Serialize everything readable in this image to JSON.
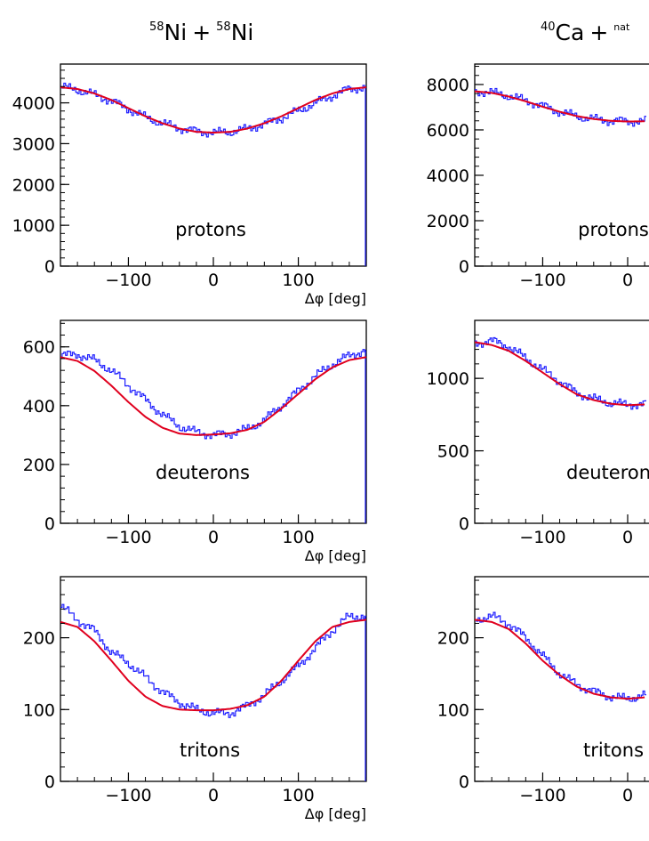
{
  "columns": [
    {
      "title_sup_a": "58",
      "title_el_a": "Ni",
      "title_plus": "+",
      "title_sup_b": "58",
      "title_el_b": "Ni"
    },
    {
      "title_sup_a": "40",
      "title_el_a": "Ca",
      "title_plus": "+",
      "title_sup_b": "nat",
      "title_el_b": ""
    }
  ],
  "colors": {
    "histogram": "#1f1fff",
    "fit": "#e0001e",
    "frame": "#000000"
  },
  "chart_data": [
    {
      "type": "line",
      "id": "ni-protons",
      "label": "protons",
      "xlabel": "Δφ [deg]",
      "ylabel": "",
      "xlim": [
        -180,
        180
      ],
      "ylim": [
        0,
        4950
      ],
      "xticks": [
        -100,
        0,
        100
      ],
      "yticks": [
        0,
        1000,
        2000,
        3000,
        4000
      ],
      "xtick_labels": [
        "−100",
        "0",
        "100"
      ],
      "ytick_labels": [
        "0",
        "1000",
        "2000",
        "3000",
        "4000"
      ],
      "series": [
        {
          "kind": "histogram",
          "x": [
            -180,
            -160,
            -140,
            -120,
            -100,
            -80,
            -60,
            -40,
            -20,
            0,
            20,
            40,
            60,
            80,
            100,
            120,
            140,
            160,
            180
          ],
          "values": [
            4400,
            4320,
            4200,
            4050,
            3850,
            3650,
            3500,
            3380,
            3300,
            3270,
            3290,
            3360,
            3480,
            3620,
            3800,
            3990,
            4170,
            4340,
            4380
          ]
        },
        {
          "kind": "fit",
          "x": [
            -180,
            -160,
            -140,
            -120,
            -100,
            -80,
            -60,
            -40,
            -20,
            0,
            20,
            40,
            60,
            80,
            100,
            120,
            140,
            160,
            180
          ],
          "values": [
            4380,
            4340,
            4230,
            4070,
            3870,
            3670,
            3500,
            3370,
            3290,
            3270,
            3290,
            3370,
            3500,
            3670,
            3870,
            4070,
            4230,
            4340,
            4380
          ]
        }
      ]
    },
    {
      "type": "line",
      "id": "ca-protons",
      "label": "protons",
      "xlabel": "",
      "ylabel": "",
      "xlim": [
        -180,
        180
      ],
      "ylim": [
        0,
        8900
      ],
      "xticks": [
        -100,
        0
      ],
      "yticks": [
        0,
        2000,
        4000,
        6000,
        8000
      ],
      "xtick_labels": [
        "−100",
        "0"
      ],
      "ytick_labels": [
        "0",
        "2000",
        "4000",
        "6000",
        "8000"
      ],
      "series": [
        {
          "kind": "histogram",
          "x": [
            -180,
            -160,
            -140,
            -120,
            -100,
            -80,
            -60,
            -40,
            -20,
            0,
            20
          ],
          "values": [
            7700,
            7650,
            7500,
            7300,
            7050,
            6800,
            6600,
            6480,
            6400,
            6380,
            6380
          ]
        },
        {
          "kind": "fit",
          "x": [
            -180,
            -160,
            -140,
            -120,
            -100,
            -80,
            -60,
            -40,
            -20,
            0,
            20
          ],
          "values": [
            7700,
            7630,
            7470,
            7260,
            7020,
            6800,
            6610,
            6480,
            6400,
            6370,
            6380
          ]
        }
      ]
    },
    {
      "type": "line",
      "id": "ni-deuterons",
      "label": "deuterons",
      "xlabel": "Δφ [deg]",
      "ylabel": "",
      "xlim": [
        -180,
        180
      ],
      "ylim": [
        0,
        690
      ],
      "xticks": [
        -100,
        0,
        100
      ],
      "yticks": [
        0,
        200,
        400,
        600
      ],
      "xtick_labels": [
        "−100",
        "0",
        "100"
      ],
      "ytick_labels": [
        "0",
        "200",
        "400",
        "600"
      ],
      "series": [
        {
          "kind": "histogram",
          "x": [
            -180,
            -160,
            -140,
            -120,
            -100,
            -80,
            -60,
            -40,
            -20,
            0,
            20,
            40,
            60,
            80,
            100,
            120,
            140,
            160,
            180
          ],
          "values": [
            570,
            575,
            555,
            520,
            470,
            420,
            370,
            330,
            310,
            300,
            305,
            320,
            350,
            400,
            450,
            500,
            540,
            570,
            590
          ]
        },
        {
          "kind": "fit",
          "x": [
            -180,
            -160,
            -140,
            -120,
            -100,
            -80,
            -60,
            -40,
            -20,
            0,
            20,
            40,
            60,
            80,
            100,
            120,
            140,
            160,
            180
          ],
          "values": [
            565,
            552,
            518,
            468,
            412,
            362,
            325,
            305,
            300,
            302,
            306,
            318,
            345,
            390,
            440,
            490,
            530,
            555,
            565
          ]
        }
      ]
    },
    {
      "type": "line",
      "id": "ca-deuterons",
      "label": "deuterons",
      "xlabel": "",
      "ylabel": "",
      "xlim": [
        -180,
        180
      ],
      "ylim": [
        0,
        1400
      ],
      "xticks": [
        -100,
        0
      ],
      "yticks": [
        0,
        500,
        1000
      ],
      "xtick_labels": [
        "−100",
        "0"
      ],
      "ytick_labels": [
        "0",
        "500",
        "1000"
      ],
      "series": [
        {
          "kind": "histogram",
          "x": [
            -180,
            -160,
            -140,
            -120,
            -100,
            -80,
            -60,
            -40,
            -20,
            0,
            20
          ],
          "values": [
            1240,
            1260,
            1220,
            1140,
            1060,
            980,
            900,
            860,
            830,
            820,
            820
          ]
        },
        {
          "kind": "fit",
          "x": [
            -180,
            -160,
            -140,
            -120,
            -100,
            -80,
            -60,
            -40,
            -20,
            0,
            20
          ],
          "values": [
            1250,
            1230,
            1190,
            1120,
            1040,
            960,
            890,
            850,
            825,
            815,
            820
          ]
        }
      ]
    },
    {
      "type": "line",
      "id": "ni-tritons",
      "label": "tritons",
      "xlabel": "Δφ [deg]",
      "ylabel": "",
      "xlim": [
        -180,
        180
      ],
      "ylim": [
        0,
        285
      ],
      "xticks": [
        -100,
        0,
        100
      ],
      "yticks": [
        0,
        100,
        200
      ],
      "xtick_labels": [
        "−100",
        "0",
        "100"
      ],
      "ytick_labels": [
        "0",
        "100",
        "200"
      ],
      "series": [
        {
          "kind": "histogram",
          "x": [
            -180,
            -160,
            -140,
            -120,
            -100,
            -80,
            -60,
            -40,
            -20,
            0,
            20,
            40,
            60,
            80,
            100,
            120,
            140,
            160,
            180
          ],
          "values": [
            245,
            225,
            210,
            180,
            165,
            145,
            125,
            110,
            100,
            95,
            95,
            105,
            120,
            140,
            160,
            185,
            210,
            230,
            230
          ]
        },
        {
          "kind": "fit",
          "x": [
            -180,
            -160,
            -140,
            -120,
            -100,
            -80,
            -60,
            -40,
            -20,
            0,
            20,
            40,
            60,
            80,
            100,
            120,
            140,
            160,
            180
          ],
          "values": [
            222,
            215,
            195,
            168,
            140,
            118,
            105,
            100,
            99,
            99,
            101,
            106,
            118,
            140,
            168,
            195,
            215,
            222,
            225
          ]
        }
      ]
    },
    {
      "type": "line",
      "id": "ca-tritons",
      "label": "tritons",
      "xlabel": "",
      "ylabel": "",
      "xlim": [
        -180,
        180
      ],
      "ylim": [
        0,
        285
      ],
      "xticks": [
        -100,
        0
      ],
      "yticks": [
        0,
        100,
        200
      ],
      "xtick_labels": [
        "−100",
        "0"
      ],
      "ytick_labels": [
        "0",
        "100",
        "200"
      ],
      "series": [
        {
          "kind": "histogram",
          "x": [
            -180,
            -160,
            -140,
            -120,
            -100,
            -80,
            -60,
            -40,
            -20,
            0,
            20
          ],
          "values": [
            225,
            230,
            220,
            200,
            175,
            150,
            135,
            125,
            118,
            115,
            120
          ]
        },
        {
          "kind": "fit",
          "x": [
            -180,
            -160,
            -140,
            -120,
            -100,
            -80,
            -60,
            -40,
            -20,
            0,
            20
          ],
          "values": [
            225,
            222,
            212,
            192,
            168,
            148,
            132,
            122,
            117,
            115,
            117
          ]
        }
      ]
    }
  ]
}
